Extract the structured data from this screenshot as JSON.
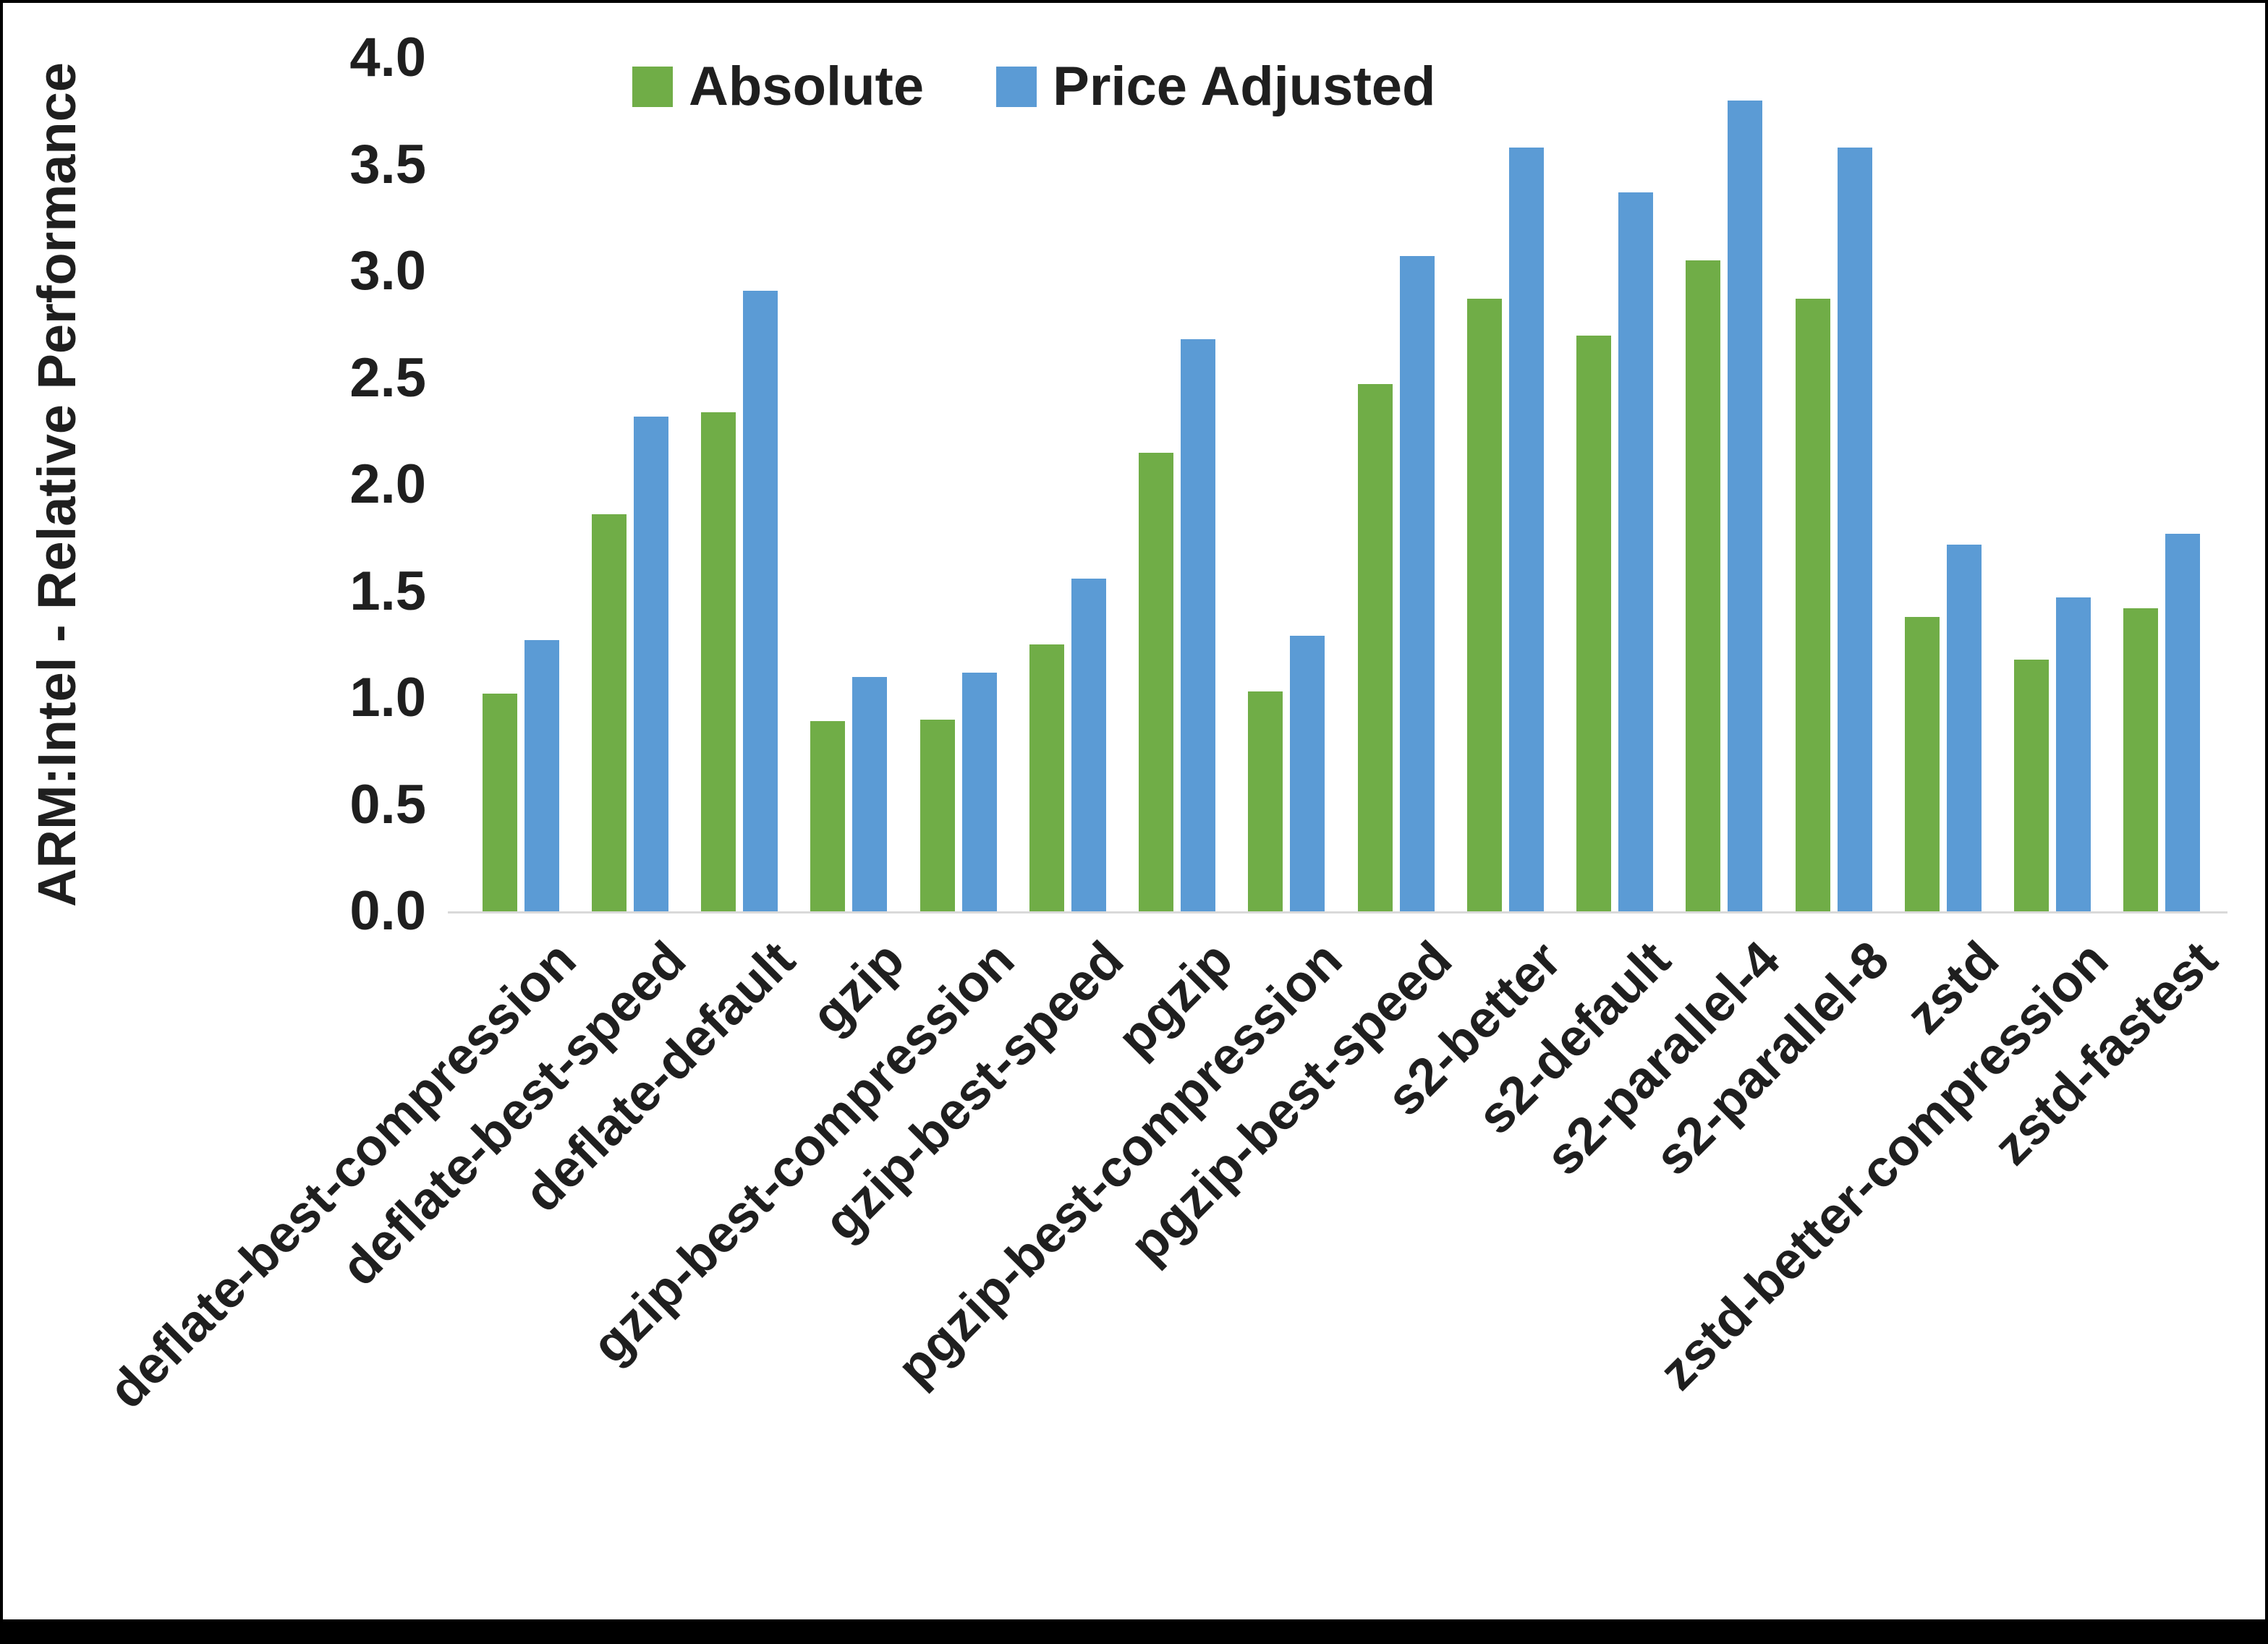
{
  "chart_data": {
    "type": "bar",
    "title": "",
    "ylabel": "ARM:Intel - Relative Performance",
    "xlabel": "",
    "ylim": [
      0.0,
      4.0
    ],
    "ytick_step": 0.5,
    "grid": false,
    "legend_position": "top-center",
    "categories": [
      "deflate-best-compression",
      "deflate-best-speed",
      "deflate-default",
      "gzip",
      "gzip-best-compression",
      "gzip-best-speed",
      "pgzip",
      "pgzip-best-compression",
      "pgzip-best-speed",
      "s2-better",
      "s2-default",
      "s2-parallel-4",
      "s2-parallel-8",
      "zstd",
      "zstd-better-compression",
      "zstd-fastest"
    ],
    "series": [
      {
        "name": "Absolute",
        "color": "#70AD47",
        "values": [
          1.02,
          1.86,
          2.34,
          0.89,
          0.9,
          1.25,
          2.15,
          1.03,
          2.47,
          2.87,
          2.7,
          3.05,
          2.87,
          1.38,
          1.18,
          1.42
        ]
      },
      {
        "name": "Price Adjusted",
        "color": "#5B9BD5",
        "values": [
          1.27,
          2.32,
          2.91,
          1.1,
          1.12,
          1.56,
          2.68,
          1.29,
          3.07,
          3.58,
          3.37,
          3.8,
          3.58,
          1.72,
          1.47,
          1.77
        ]
      }
    ]
  }
}
